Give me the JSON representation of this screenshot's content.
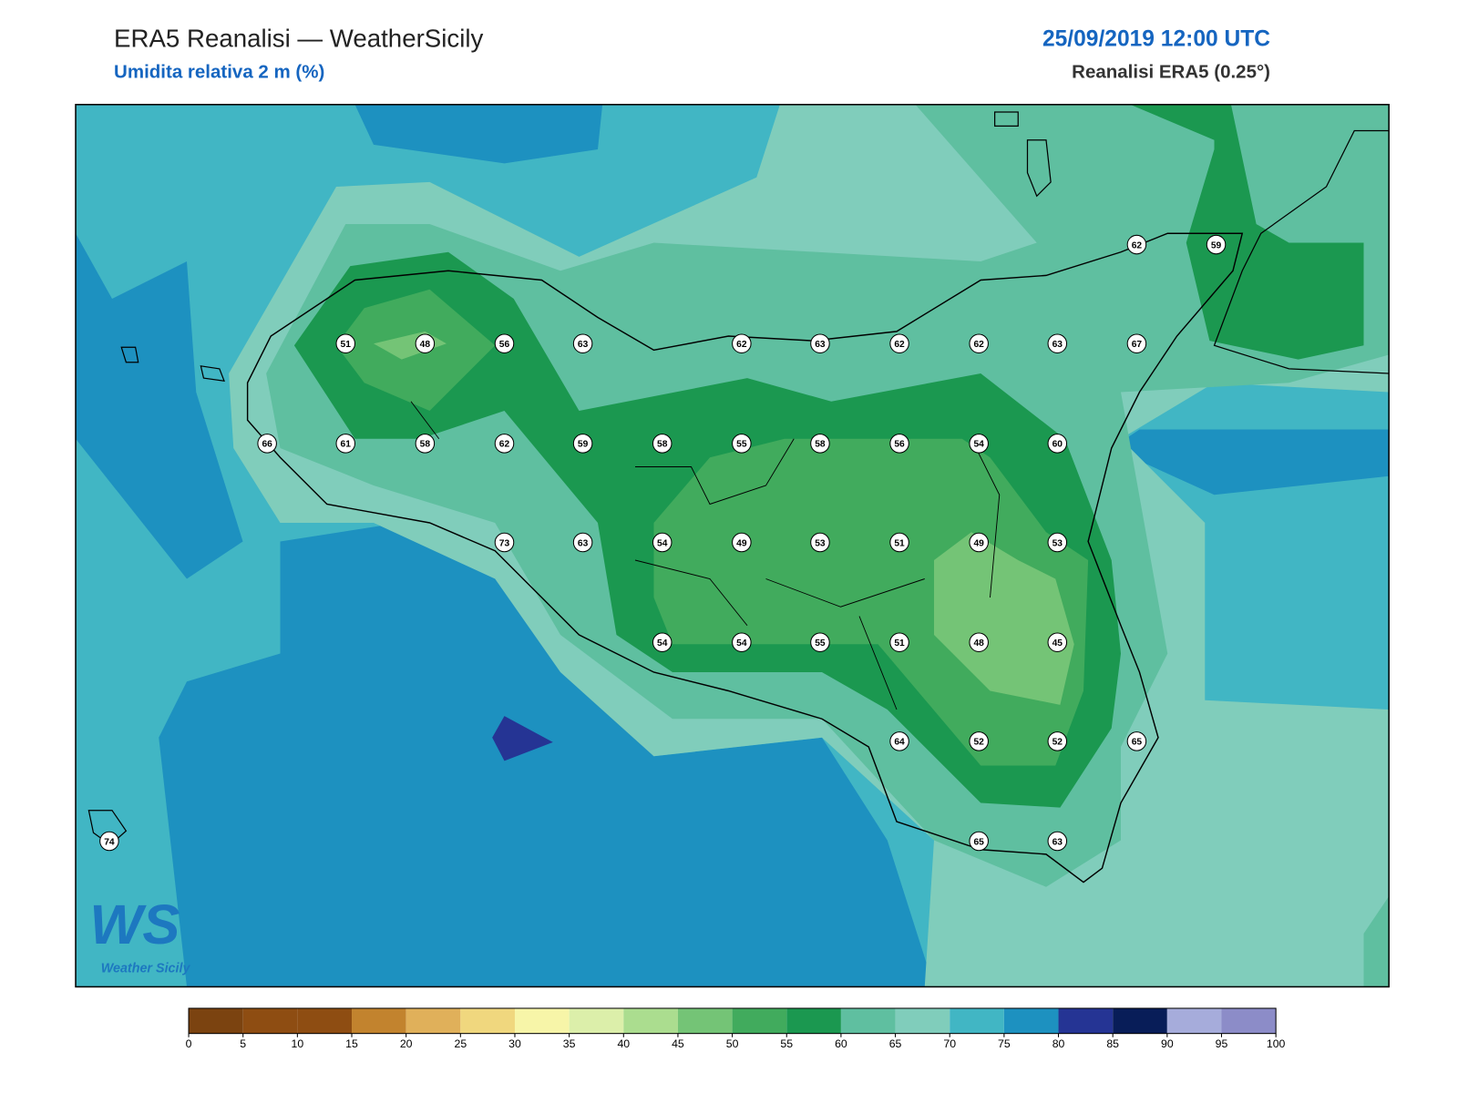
{
  "header": {
    "title": "ERA5 Reanalisi — WeatherSicily",
    "subtitle": "Umidita relativa 2 m (%)",
    "datetime": "25/09/2019 12:00 UTC",
    "source": "Reanalisi ERA5 (0.25°)"
  },
  "map": {
    "stations": [
      62,
      59,
      51,
      48,
      56,
      63,
      62,
      63,
      62,
      62,
      63,
      67,
      66,
      61,
      58,
      62,
      59,
      58,
      55,
      58,
      56,
      54,
      60,
      73,
      63,
      54,
      49,
      53,
      51,
      49,
      53,
      54,
      54,
      55,
      51,
      48,
      45,
      64,
      52,
      52,
      65,
      74,
      65,
      63
    ]
  },
  "logo": {
    "mark": "WS",
    "name": "Weather Sicily"
  },
  "legend": {
    "ticks": [
      0,
      5,
      10,
      15,
      20,
      25,
      30,
      35,
      40,
      45,
      50,
      55,
      60,
      65,
      70,
      75,
      80,
      85,
      90,
      95,
      100
    ],
    "colors": [
      "#7b4310",
      "#8e4d12",
      "#8e4d12",
      "#c2832e",
      "#e0b05a",
      "#f0d77e",
      "#f7f5a8",
      "#dcefaa",
      "#abdd8f",
      "#74c476",
      "#41ab5d",
      "#1b9850",
      "#5fbfa0",
      "#80cdbb",
      "#41b6c4",
      "#1d91c0",
      "#253494",
      "#081d58",
      "#a6acdb",
      "#8c8cc8"
    ]
  }
}
